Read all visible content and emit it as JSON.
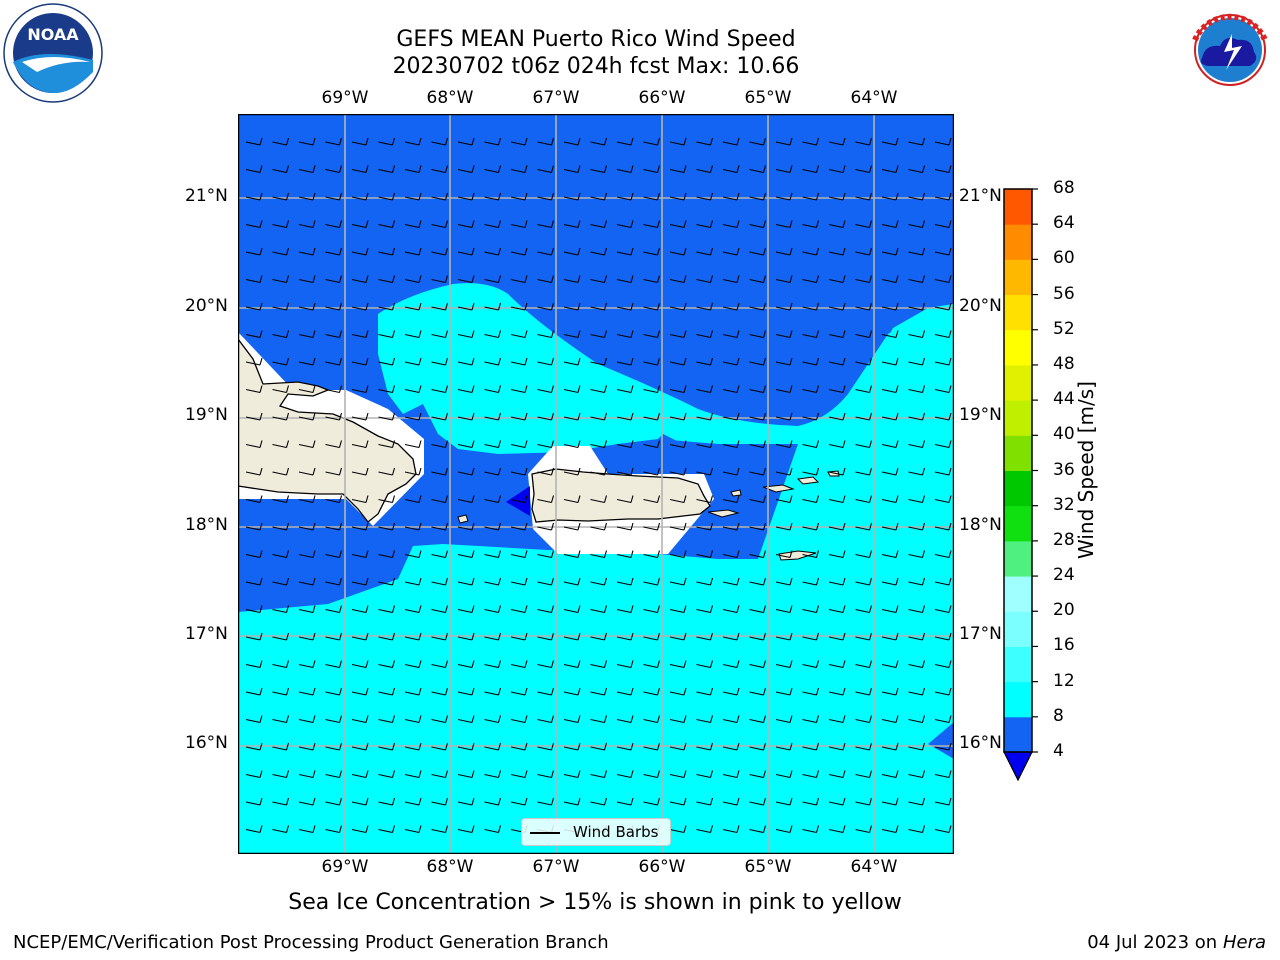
{
  "header": {
    "title_line1": "GEFS MEAN Puerto Rico Wind Speed",
    "title_line2": "20230702 t06z 024h fcst   Max: 10.66"
  },
  "logos": {
    "left": {
      "icon": "noaa-logo",
      "text": "NOAA",
      "ring_text": "NATIONAL OCEANIC AND ATMOSPHERIC ADMINISTRATION · U.S. DEPARTMENT OF COMMERCE"
    },
    "right": {
      "icon": "nws-logo",
      "ring_text": "NATIONAL WEATHER SERVICE"
    }
  },
  "map": {
    "lon_labels": [
      "69°W",
      "68°W",
      "67°W",
      "66°W",
      "65°W",
      "64°W"
    ],
    "lat_labels": [
      "21°N",
      "20°N",
      "19°N",
      "18°N",
      "17°N",
      "16°N"
    ],
    "legend_label": "Wind Barbs",
    "colors": {
      "ocean_dark": "#1464F4",
      "ocean_light": "#00FFFF",
      "land": "#EFECDC",
      "deep_blue": "#0000EE",
      "grid": "#B4B4B4"
    }
  },
  "colorbar": {
    "label": "Wind Speed [m/s]",
    "ticks": [
      "4",
      "8",
      "12",
      "16",
      "20",
      "24",
      "28",
      "32",
      "36",
      "40",
      "44",
      "48",
      "52",
      "56",
      "60",
      "64",
      "68"
    ],
    "colors": [
      "#1464F4",
      "#00FFFF",
      "#3EFFFF",
      "#7CFFFF",
      "#A0FFFF",
      "#50F080",
      "#10E010",
      "#00C800",
      "#80E000",
      "#C0F000",
      "#E0F000",
      "#FFFF00",
      "#FFE000",
      "#FFB800",
      "#FF8C00",
      "#FF5800",
      "#FF2000",
      "#FF0000"
    ]
  },
  "footer": {
    "subtitle": "Sea Ice Concentration > 15% is shown in pink to yellow",
    "left": "NCEP/EMC/Verification Post Processing Product Generation Branch",
    "date": "04 Jul 2023 on ",
    "machine": "Hera"
  }
}
